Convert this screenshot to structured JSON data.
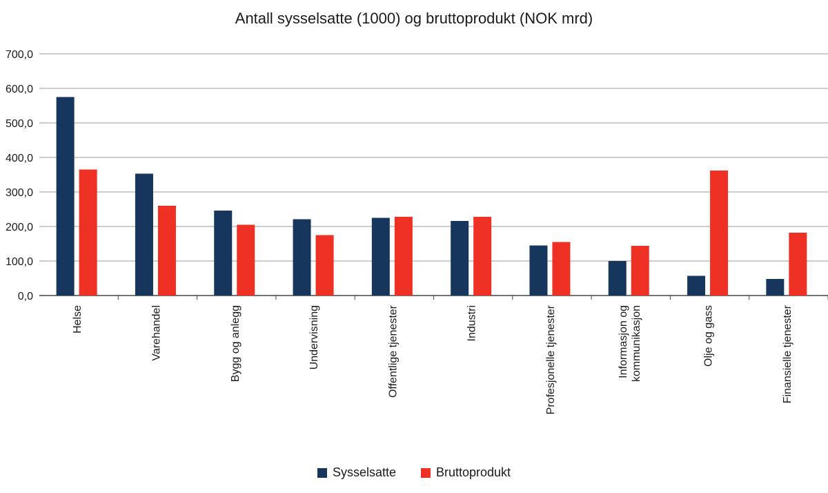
{
  "chart_data": {
    "type": "bar",
    "title": "Antall sysselsatte (1000) og bruttoprodukt (NOK mrd)",
    "categories": [
      "Helse",
      "Varehandel",
      "Bygg og anlegg",
      "Undervisning",
      "Offentlige tjenester",
      "Industri",
      "Profesjonelle tjenester",
      "Informasjon og kommunikasjon",
      "Olje og gass",
      "Finansielle tjenester"
    ],
    "series": [
      {
        "name": "Sysselsatte",
        "color": "#17365d",
        "values": [
          575,
          353,
          246,
          221,
          225,
          216,
          145,
          100,
          57,
          48
        ]
      },
      {
        "name": "Bruttoprodukt",
        "color": "#ee3124",
        "values": [
          365,
          260,
          205,
          175,
          228,
          228,
          155,
          144,
          362,
          182
        ]
      }
    ],
    "y_ticks": [
      "0,0",
      "100,0",
      "200,0",
      "300,0",
      "400,0",
      "500,0",
      "600,0",
      "700,0"
    ],
    "ylim": [
      0,
      700
    ],
    "grid": true,
    "legend_position": "bottom"
  }
}
